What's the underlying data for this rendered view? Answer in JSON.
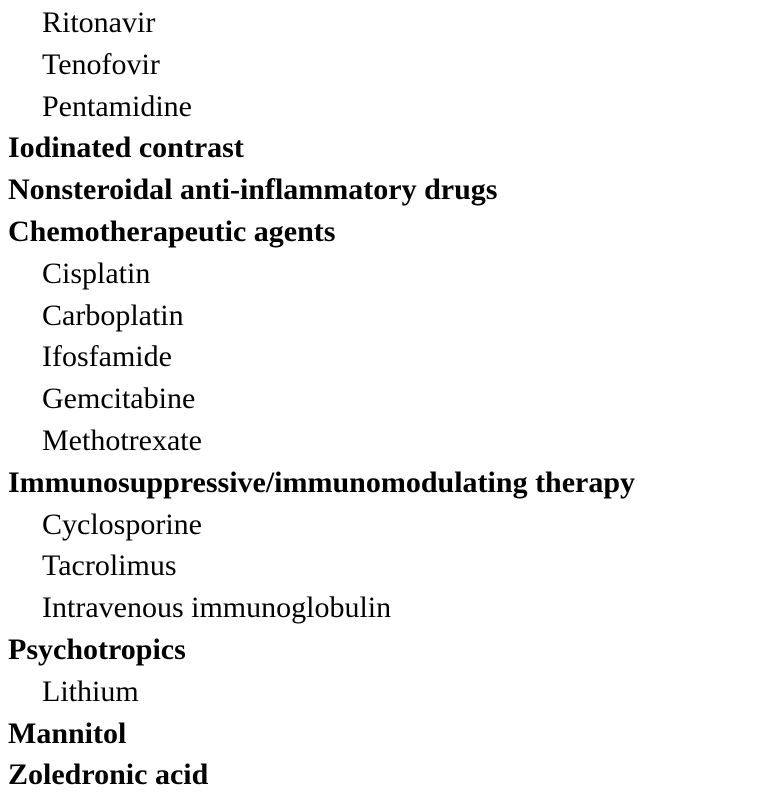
{
  "entries": [
    {
      "text": "Ritonavir",
      "level": "sub"
    },
    {
      "text": "Tenofovir",
      "level": "sub"
    },
    {
      "text": "Pentamidine",
      "level": "sub"
    },
    {
      "text": "Iodinated contrast",
      "level": "cat"
    },
    {
      "text": "Nonsteroidal anti-inflammatory drugs",
      "level": "cat"
    },
    {
      "text": "Chemotherapeutic agents",
      "level": "cat"
    },
    {
      "text": "Cisplatin",
      "level": "sub"
    },
    {
      "text": "Carboplatin",
      "level": "sub"
    },
    {
      "text": "Ifosfamide",
      "level": "sub"
    },
    {
      "text": "Gemcitabine",
      "level": "sub"
    },
    {
      "text": "Methotrexate",
      "level": "sub"
    },
    {
      "text": "Immunosuppressive/immunomodulating therapy",
      "level": "cat"
    },
    {
      "text": "Cyclosporine",
      "level": "sub"
    },
    {
      "text": "Tacrolimus",
      "level": "sub"
    },
    {
      "text": "Intravenous immunoglobulin",
      "level": "sub"
    },
    {
      "text": "Psychotropics",
      "level": "cat"
    },
    {
      "text": "Lithium",
      "level": "sub"
    },
    {
      "text": "Mannitol",
      "level": "cat"
    },
    {
      "text": "Zoledronic acid",
      "level": "cat"
    }
  ]
}
